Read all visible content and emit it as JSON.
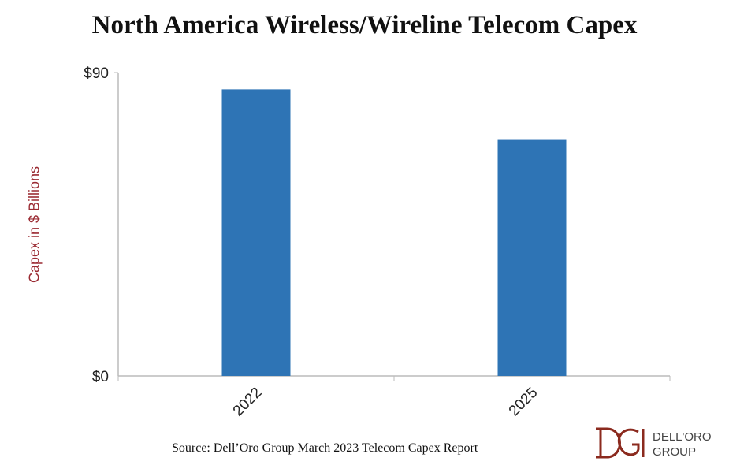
{
  "chart_data": {
    "type": "bar",
    "title": "North America Wireless/Wireline Telecom Capex",
    "ylabel": "Capex in $ Billions",
    "xlabel": "",
    "categories": [
      "2022",
      "2025"
    ],
    "values": [
      85,
      70
    ],
    "ylim": [
      0,
      90
    ],
    "yticks": [
      "$0",
      "$90"
    ],
    "grid": false,
    "bar_color": "#2e74b5"
  },
  "source": "Source: Dell’Oro Group March 2023 Telecom Capex Report",
  "logo": {
    "line1": "DELL'ORO",
    "line2": "GROUP",
    "color": "#8b2a1e"
  }
}
